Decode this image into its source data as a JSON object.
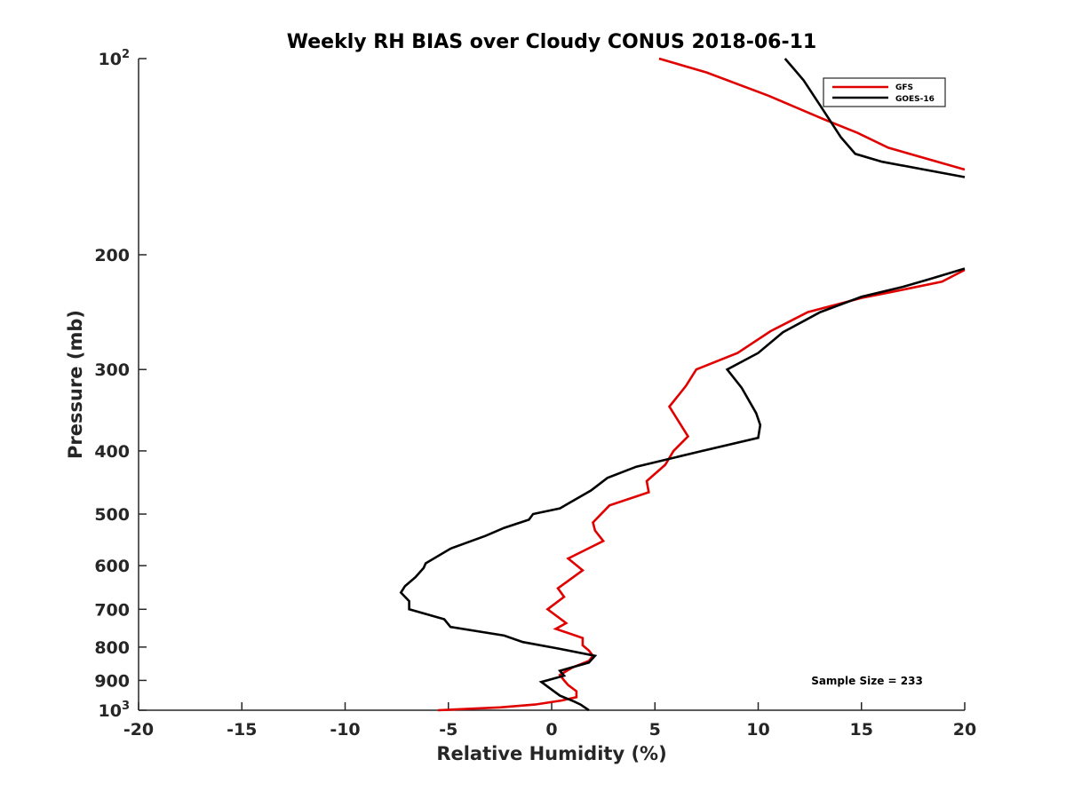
{
  "chart_data": {
    "type": "line",
    "title": "Weekly RH BIAS over Cloudy CONUS 2018-06-11",
    "xlabel": "Relative Humidity (%)",
    "ylabel": "Pressure (mb)",
    "xlim": [
      -20,
      20
    ],
    "ylim": [
      100,
      1000
    ],
    "yscale": "log",
    "y_inverted": true,
    "xticks": [
      -20,
      -15,
      -10,
      -5,
      0,
      5,
      10,
      15,
      20
    ],
    "yticks": [
      {
        "value": 100,
        "label": "10",
        "sup": "2"
      },
      {
        "value": 200,
        "label": "200"
      },
      {
        "value": 300,
        "label": "300"
      },
      {
        "value": 400,
        "label": "400"
      },
      {
        "value": 500,
        "label": "500"
      },
      {
        "value": 600,
        "label": "600"
      },
      {
        "value": 700,
        "label": "700"
      },
      {
        "value": 800,
        "label": "800"
      },
      {
        "value": 900,
        "label": "900"
      },
      {
        "value": 1000,
        "label": "10",
        "sup": "3"
      }
    ],
    "grid": false,
    "legend_position": "top-right",
    "annotation": "Sample Size = 233",
    "series": [
      {
        "name": "GFS",
        "color": "#e00000",
        "segments": [
          [
            [
              5.2,
              100
            ],
            [
              7.5,
              105
            ],
            [
              10.5,
              114
            ],
            [
              13.2,
              124
            ],
            [
              14.8,
              130
            ],
            [
              16.3,
              137
            ],
            [
              20,
              148
            ]
          ],
          [
            [
              20,
              211
            ],
            [
              18.9,
              220
            ],
            [
              16.5,
              228
            ],
            [
              15.0,
              233
            ],
            [
              12.4,
              245
            ],
            [
              10.6,
              262
            ],
            [
              9.0,
              283
            ],
            [
              7.0,
              300
            ],
            [
              6.5,
              318
            ],
            [
              5.7,
              342
            ],
            [
              6.6,
              380
            ],
            [
              5.9,
              400
            ],
            [
              5.5,
              420
            ],
            [
              4.6,
              445
            ],
            [
              4.7,
              463
            ],
            [
              2.8,
              485
            ],
            [
              2.0,
              515
            ],
            [
              2.1,
              530
            ],
            [
              2.5,
              550
            ],
            [
              0.8,
              585
            ],
            [
              1.5,
              610
            ],
            [
              0.3,
              650
            ],
            [
              0.6,
              670
            ],
            [
              -0.2,
              700
            ],
            [
              0.7,
              735
            ],
            [
              0.2,
              750
            ],
            [
              1.5,
              775
            ],
            [
              1.5,
              795
            ],
            [
              1.8,
              810
            ],
            [
              2.0,
              825
            ],
            [
              1.8,
              840
            ],
            [
              1.0,
              860
            ],
            [
              0.4,
              883
            ],
            [
              0.6,
              900
            ],
            [
              0.8,
              915
            ],
            [
              1.2,
              935
            ],
            [
              1.2,
              955
            ],
            [
              0.5,
              966
            ],
            [
              -0.8,
              980
            ],
            [
              -2.5,
              990
            ],
            [
              -5.5,
              1000
            ]
          ]
        ]
      },
      {
        "name": "GOES-16",
        "color": "#000000",
        "segments": [
          [
            [
              11.3,
              100
            ],
            [
              12.2,
              108
            ],
            [
              13.0,
              118
            ],
            [
              14.0,
              132
            ],
            [
              14.7,
              140
            ],
            [
              16.0,
              144
            ],
            [
              20,
              152
            ]
          ],
          [
            [
              20,
              210
            ],
            [
              18.3,
              218
            ],
            [
              17.0,
              224
            ],
            [
              15.0,
              232
            ],
            [
              13.0,
              245
            ],
            [
              11.2,
              263
            ],
            [
              10.0,
              283
            ],
            [
              8.5,
              300
            ],
            [
              9.2,
              320
            ],
            [
              9.9,
              350
            ],
            [
              10.1,
              365
            ],
            [
              10.0,
              382
            ],
            [
              7.3,
              400
            ],
            [
              4.1,
              423
            ],
            [
              2.7,
              440
            ],
            [
              1.9,
              460
            ],
            [
              0.4,
              490
            ],
            [
              -0.9,
              500
            ],
            [
              -1.1,
              510
            ],
            [
              -2.3,
              525
            ],
            [
              -3.2,
              540
            ],
            [
              -4.9,
              565
            ],
            [
              -6.1,
              595
            ],
            [
              -6.2,
              605
            ],
            [
              -6.6,
              625
            ],
            [
              -7.1,
              645
            ],
            [
              -7.3,
              660
            ],
            [
              -6.9,
              680
            ],
            [
              -6.9,
              700
            ],
            [
              -5.2,
              725
            ],
            [
              -4.9,
              745
            ],
            [
              -2.3,
              768
            ],
            [
              -1.4,
              786
            ],
            [
              0.4,
              805
            ],
            [
              2.1,
              825
            ],
            [
              1.8,
              845
            ],
            [
              0.4,
              870
            ],
            [
              0.6,
              885
            ],
            [
              -0.5,
              905
            ],
            [
              -0.1,
              925
            ],
            [
              0.4,
              950
            ],
            [
              1.1,
              970
            ],
            [
              1.4,
              980
            ],
            [
              1.8,
              1000
            ]
          ]
        ]
      }
    ]
  }
}
